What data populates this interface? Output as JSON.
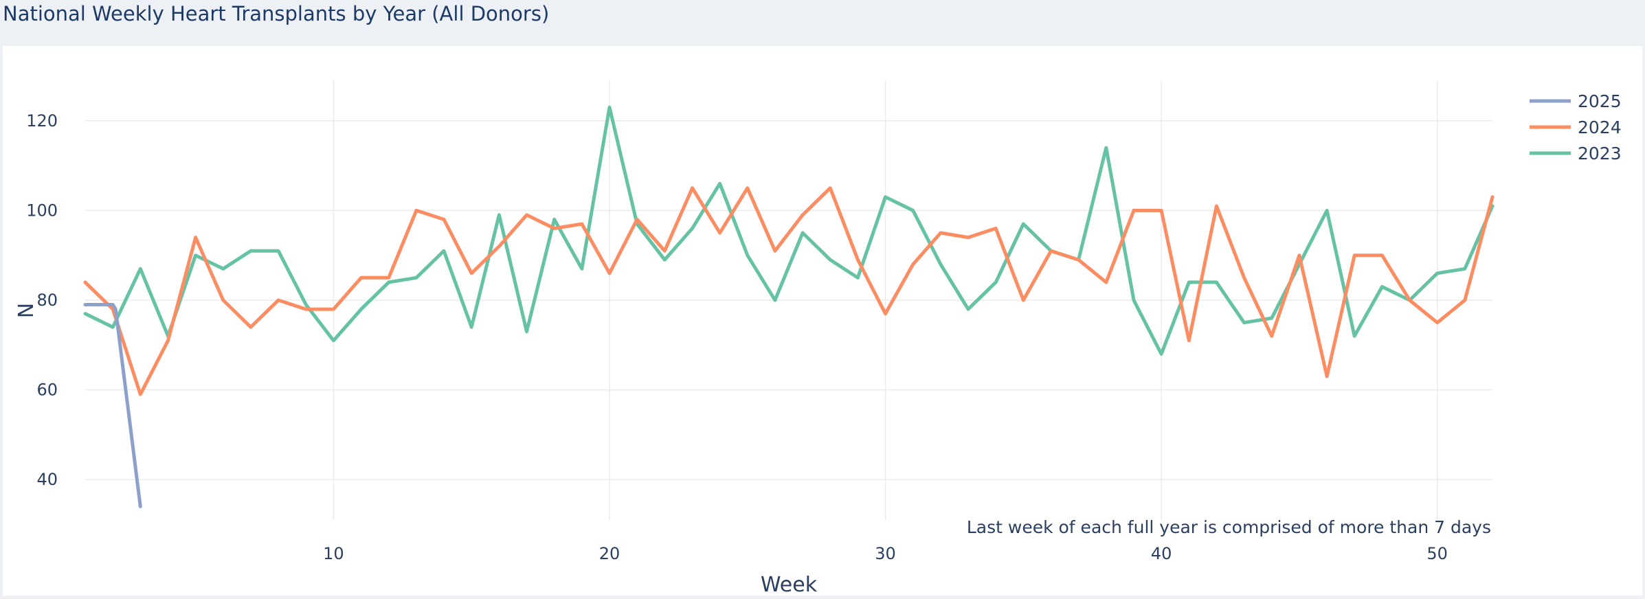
{
  "page": {
    "title": "National Weekly Heart Transplants by Year (All Donors)"
  },
  "chart_data": {
    "type": "line",
    "xlabel": "Week",
    "ylabel": "N",
    "xlim": [
      1,
      52
    ],
    "ylim": [
      31,
      129
    ],
    "x_ticks": [
      10,
      20,
      30,
      40,
      50
    ],
    "y_ticks": [
      40,
      60,
      80,
      100,
      120
    ],
    "grid": true,
    "legend_placement": "top-right",
    "annotation": "Last week of each full year is comprised of more than 7 days",
    "series": [
      {
        "name": "2025",
        "color": "#8da0cb",
        "x": [
          1,
          2,
          2.1,
          3
        ],
        "values": [
          79,
          79,
          78,
          34
        ]
      },
      {
        "name": "2024",
        "color": "#fc8d62",
        "x": [
          1,
          2,
          3,
          4,
          5,
          6,
          7,
          8,
          9,
          10,
          11,
          12,
          13,
          14,
          15,
          16,
          17,
          18,
          19,
          20,
          21,
          22,
          23,
          24,
          25,
          26,
          27,
          28,
          29,
          30,
          31,
          32,
          33,
          34,
          35,
          36,
          37,
          38,
          39,
          40,
          41,
          42,
          43,
          44,
          45,
          46,
          47,
          48,
          49,
          50,
          51,
          52
        ],
        "values": [
          84,
          78,
          59,
          71,
          94,
          80,
          74,
          80,
          78,
          78,
          85,
          85,
          100,
          98,
          86,
          92,
          99,
          96,
          97,
          86,
          98,
          91,
          105,
          95,
          105,
          91,
          99,
          105,
          89,
          77,
          88,
          95,
          94,
          96,
          80,
          91,
          89,
          84,
          100,
          100,
          71,
          101,
          85,
          72,
          90,
          63,
          90,
          90,
          80,
          75,
          80,
          103
        ]
      },
      {
        "name": "2023",
        "color": "#66c2a5",
        "x": [
          1,
          2,
          3,
          4,
          5,
          6,
          7,
          8,
          9,
          10,
          11,
          12,
          13,
          14,
          15,
          16,
          17,
          18,
          19,
          20,
          21,
          22,
          23,
          24,
          25,
          26,
          27,
          28,
          29,
          30,
          31,
          32,
          33,
          34,
          35,
          36,
          37,
          38,
          39,
          40,
          41,
          42,
          43,
          44,
          45,
          46,
          47,
          48,
          49,
          50,
          51,
          52
        ],
        "values": [
          77,
          74,
          87,
          72,
          90,
          87,
          91,
          91,
          79,
          71,
          78,
          84,
          85,
          91,
          74,
          99,
          73,
          98,
          87,
          123,
          97,
          89,
          96,
          106,
          90,
          80,
          95,
          89,
          85,
          103,
          100,
          88,
          78,
          84,
          97,
          91,
          89,
          114,
          80,
          68,
          84,
          84,
          75,
          76,
          88,
          100,
          72,
          83,
          80,
          86,
          87,
          101
        ]
      }
    ]
  }
}
